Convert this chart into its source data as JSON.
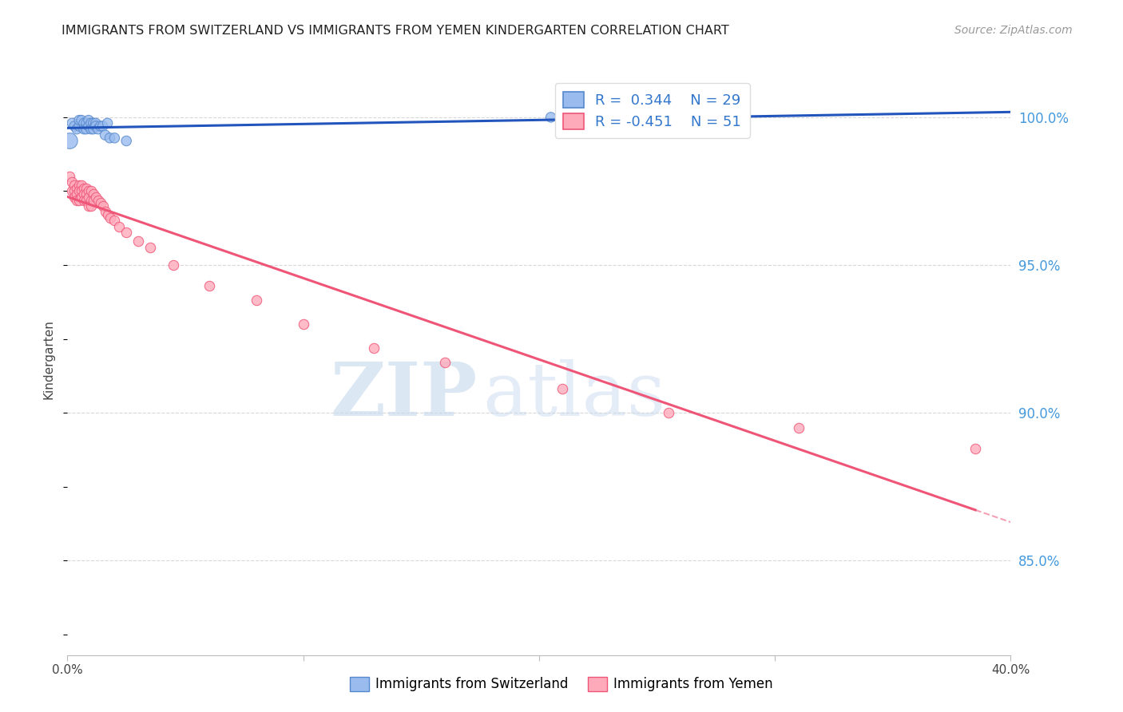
{
  "title": "IMMIGRANTS FROM SWITZERLAND VS IMMIGRANTS FROM YEMEN KINDERGARTEN CORRELATION CHART",
  "source": "Source: ZipAtlas.com",
  "ylabel": "Kindergarten",
  "ytick_labels": [
    "100.0%",
    "95.0%",
    "90.0%",
    "85.0%"
  ],
  "ytick_values": [
    1.0,
    0.95,
    0.9,
    0.85
  ],
  "xlim": [
    0.0,
    0.4
  ],
  "ylim": [
    0.818,
    1.018
  ],
  "bg_color": "#ffffff",
  "grid_color": "#d8d8d8",
  "swiss_color": "#5588cc",
  "swiss_color_fill": "#99bbee",
  "yemen_color": "#ee5577",
  "yemen_color_fill": "#ffaabb",
  "swiss_R": 0.344,
  "swiss_N": 29,
  "yemen_R": -0.451,
  "yemen_N": 51,
  "watermark_left": "ZIP",
  "watermark_right": "atlas",
  "swiss_points_x": [
    0.001,
    0.002,
    0.003,
    0.004,
    0.005,
    0.005,
    0.006,
    0.007,
    0.007,
    0.008,
    0.008,
    0.009,
    0.009,
    0.01,
    0.01,
    0.011,
    0.011,
    0.012,
    0.012,
    0.013,
    0.014,
    0.015,
    0.016,
    0.017,
    0.018,
    0.02,
    0.025,
    0.205,
    0.275
  ],
  "swiss_points_y": [
    0.992,
    0.998,
    0.997,
    0.996,
    0.997,
    0.999,
    0.999,
    0.998,
    0.996,
    0.998,
    0.996,
    0.999,
    0.997,
    0.998,
    0.996,
    0.998,
    0.996,
    0.998,
    0.997,
    0.996,
    0.997,
    0.997,
    0.994,
    0.998,
    0.993,
    0.993,
    0.992,
    1.0,
    1.0
  ],
  "swiss_marker_sizes": [
    200,
    80,
    80,
    80,
    80,
    80,
    80,
    80,
    80,
    80,
    80,
    80,
    80,
    80,
    80,
    80,
    80,
    80,
    80,
    80,
    80,
    80,
    80,
    80,
    80,
    80,
    80,
    80,
    80
  ],
  "yemen_points_x": [
    0.001,
    0.002,
    0.002,
    0.003,
    0.003,
    0.003,
    0.004,
    0.004,
    0.004,
    0.005,
    0.005,
    0.005,
    0.006,
    0.006,
    0.006,
    0.007,
    0.007,
    0.007,
    0.008,
    0.008,
    0.008,
    0.009,
    0.009,
    0.009,
    0.01,
    0.01,
    0.01,
    0.011,
    0.011,
    0.012,
    0.013,
    0.014,
    0.015,
    0.016,
    0.017,
    0.018,
    0.02,
    0.022,
    0.025,
    0.03,
    0.035,
    0.045,
    0.06,
    0.08,
    0.1,
    0.13,
    0.16,
    0.21,
    0.255,
    0.31,
    0.385
  ],
  "yemen_points_y": [
    0.98,
    0.978,
    0.975,
    0.977,
    0.975,
    0.973,
    0.976,
    0.974,
    0.972,
    0.977,
    0.975,
    0.972,
    0.977,
    0.975,
    0.973,
    0.976,
    0.974,
    0.972,
    0.976,
    0.974,
    0.972,
    0.975,
    0.973,
    0.97,
    0.975,
    0.972,
    0.97,
    0.974,
    0.972,
    0.973,
    0.972,
    0.971,
    0.97,
    0.968,
    0.967,
    0.966,
    0.965,
    0.963,
    0.961,
    0.958,
    0.956,
    0.95,
    0.943,
    0.938,
    0.93,
    0.922,
    0.917,
    0.908,
    0.9,
    0.895,
    0.888
  ],
  "yemen_marker_size": 80,
  "xtick_positions": [
    0.0,
    0.1,
    0.2,
    0.3,
    0.4
  ],
  "xtick_labels": [
    "0.0%",
    "",
    "",
    "",
    "40.0%"
  ]
}
